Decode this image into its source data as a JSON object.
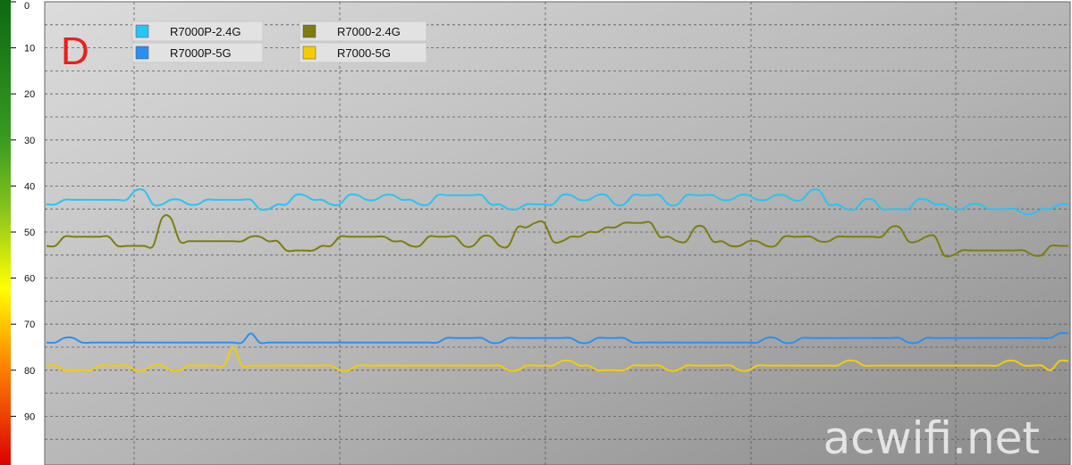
{
  "chart_data": {
    "type": "line",
    "title": "",
    "xlabel": "",
    "ylabel": "",
    "ylim": [
      0,
      100
    ],
    "y_inverted": true,
    "grid": true,
    "legend_position": "top-left",
    "yticks": [
      "0",
      "10",
      "20",
      "30",
      "40",
      "50",
      "60",
      "70",
      "80",
      "90"
    ],
    "panel_label": "D",
    "watermark": "acwifi.net",
    "x": [
      0,
      1,
      2,
      3,
      4,
      5,
      6,
      7,
      8,
      9,
      10,
      11,
      12,
      13,
      14,
      15,
      16,
      17,
      18,
      19,
      20,
      21,
      22,
      23,
      24,
      25,
      26,
      27,
      28,
      29,
      30,
      31,
      32,
      33,
      34,
      35,
      36,
      37,
      38,
      39,
      40,
      41,
      42,
      43,
      44,
      45,
      46,
      47,
      48,
      49,
      50,
      51,
      52,
      53,
      54,
      55,
      56,
      57,
      58,
      59,
      60,
      61,
      62,
      63,
      64,
      65,
      66,
      67,
      68,
      69,
      70,
      71,
      72,
      73,
      74,
      75,
      76,
      77,
      78,
      79,
      80,
      81,
      82,
      83,
      84,
      85,
      86,
      87,
      88,
      89,
      90,
      91,
      92,
      93,
      94,
      95,
      96,
      97,
      98,
      99,
      100,
      101,
      102,
      103,
      104,
      105,
      106,
      107,
      108,
      109,
      110,
      111,
      112,
      113,
      114,
      115
    ],
    "series": [
      {
        "name": "R7000P-2.4G",
        "color": "#27c4f5",
        "values": [
          44,
          44,
          43,
          43,
          43,
          43,
          43,
          43,
          43,
          43,
          41,
          41,
          44,
          44,
          43,
          43,
          44,
          44,
          43,
          43,
          43,
          43,
          43,
          43,
          45,
          45,
          44,
          44,
          42,
          42,
          43,
          43,
          44,
          44,
          42,
          42,
          43,
          43,
          42,
          42,
          43,
          43,
          44,
          44,
          42,
          42,
          42,
          42,
          42,
          42,
          44,
          44,
          45,
          45,
          44,
          44,
          44,
          44,
          42,
          42,
          43,
          43,
          42,
          42,
          44,
          44,
          42,
          42,
          42,
          42,
          44,
          44,
          42,
          42,
          42,
          42,
          43,
          43,
          42,
          42,
          43,
          43,
          42,
          42,
          43,
          43,
          41,
          41,
          44,
          44,
          45,
          45,
          43,
          43,
          45,
          45,
          45,
          45,
          43,
          43,
          44,
          44,
          45,
          45,
          44,
          44,
          45,
          45,
          45,
          45,
          46,
          46,
          45,
          45,
          44,
          44
        ]
      },
      {
        "name": "R7000P-5G",
        "color": "#2a8ff0",
        "values": [
          74,
          74,
          73,
          73,
          74,
          74,
          74,
          74,
          74,
          74,
          74,
          74,
          74,
          74,
          74,
          74,
          74,
          74,
          74,
          74,
          74,
          74,
          74,
          72,
          74,
          74,
          74,
          74,
          74,
          74,
          74,
          74,
          74,
          74,
          74,
          74,
          74,
          74,
          74,
          74,
          74,
          74,
          74,
          74,
          74,
          73,
          73,
          73,
          73,
          73,
          74,
          74,
          73,
          73,
          73,
          73,
          73,
          73,
          73,
          73,
          74,
          74,
          73,
          73,
          73,
          73,
          74,
          74,
          74,
          74,
          74,
          74,
          74,
          74,
          74,
          74,
          74,
          74,
          74,
          74,
          74,
          73,
          73,
          74,
          74,
          73,
          73,
          73,
          73,
          73,
          73,
          73,
          73,
          73,
          73,
          73,
          73,
          74,
          74,
          73,
          73,
          73,
          73,
          73,
          73,
          73,
          73,
          73,
          73,
          73,
          73,
          73,
          73,
          73,
          72,
          72
        ]
      },
      {
        "name": "R7000-2.4G",
        "color": "#7d7d10",
        "values": [
          53,
          53,
          51,
          51,
          51,
          51,
          51,
          51,
          53,
          53,
          53,
          53,
          53,
          47,
          47,
          52,
          52,
          52,
          52,
          52,
          52,
          52,
          52,
          51,
          51,
          52,
          52,
          54,
          54,
          54,
          54,
          53,
          53,
          51,
          51,
          51,
          51,
          51,
          51,
          52,
          52,
          53,
          53,
          51,
          51,
          51,
          51,
          53,
          53,
          51,
          51,
          53,
          53,
          49,
          49,
          48,
          48,
          52,
          52,
          51,
          51,
          50,
          50,
          49,
          49,
          48,
          48,
          48,
          48,
          51,
          51,
          52,
          52,
          49,
          49,
          52,
          52,
          53,
          53,
          52,
          52,
          53,
          53,
          51,
          51,
          51,
          51,
          52,
          52,
          51,
          51,
          51,
          51,
          51,
          51,
          49,
          49,
          52,
          52,
          51,
          51,
          55,
          55,
          54,
          54,
          54,
          54,
          54,
          54,
          54,
          54,
          55,
          55,
          53,
          53,
          53
        ]
      },
      {
        "name": "R7000-5G",
        "color": "#f5cc00",
        "values": [
          79,
          79,
          80,
          80,
          80,
          80,
          79,
          79,
          79,
          79,
          80,
          80,
          79,
          79,
          80,
          80,
          79,
          79,
          79,
          79,
          79,
          75,
          79,
          79,
          79,
          79,
          79,
          79,
          79,
          79,
          79,
          79,
          79,
          80,
          80,
          79,
          79,
          79,
          79,
          79,
          79,
          79,
          79,
          79,
          79,
          79,
          79,
          79,
          79,
          79,
          79,
          79,
          80,
          80,
          79,
          79,
          79,
          79,
          78,
          78,
          79,
          79,
          80,
          80,
          80,
          80,
          79,
          79,
          79,
          79,
          80,
          80,
          79,
          79,
          79,
          79,
          79,
          79,
          80,
          80,
          79,
          79,
          79,
          79,
          79,
          79,
          79,
          79,
          79,
          79,
          78,
          78,
          79,
          79,
          79,
          79,
          79,
          79,
          79,
          79,
          79,
          79,
          79,
          79,
          79,
          79,
          79,
          79,
          78,
          78,
          79,
          79,
          79,
          80,
          78,
          78
        ]
      }
    ]
  }
}
